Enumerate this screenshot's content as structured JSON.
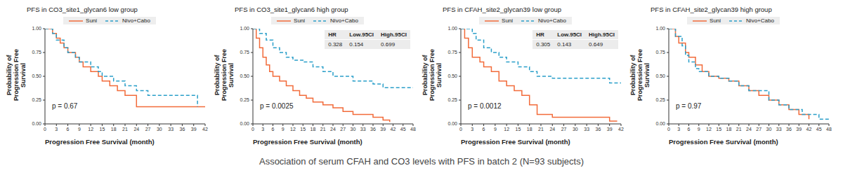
{
  "caption": "Association of serum CFAH and CO3 levels with PFS in batch 2 (N=93 subjects)",
  "chart_data": [
    {
      "type": "line",
      "title": "PFS in CO3_site1_glycan6 low group",
      "x_label": "Progression Free Survival (month)",
      "y_label": "Probability of Progression Free Survival",
      "legend": "top",
      "xlim": [
        0,
        42
      ],
      "xticks": [
        0,
        3,
        6,
        9,
        12,
        15,
        18,
        21,
        24,
        27,
        30,
        33,
        36,
        39,
        42
      ],
      "ylim": [
        0,
        1
      ],
      "yticks": [
        {
          "value": 0,
          "label": "0.00"
        },
        {
          "value": 0.25,
          "label": "0.25"
        },
        {
          "value": 0.5,
          "label": "0.50"
        },
        {
          "value": 0.75,
          "label": "0.75"
        },
        {
          "value": 1,
          "label": "1.00"
        }
      ],
      "series": [
        {
          "name": "Suni",
          "color": "#f26b3a",
          "line_style": "solid",
          "x": [
            0,
            2,
            3,
            4,
            5,
            6,
            8,
            9,
            10,
            12,
            14,
            15,
            17,
            19,
            21,
            24,
            40,
            42
          ],
          "values": [
            1,
            0.95,
            0.9,
            0.85,
            0.8,
            0.75,
            0.7,
            0.65,
            0.6,
            0.55,
            0.5,
            0.45,
            0.4,
            0.35,
            0.3,
            0.18,
            0.18,
            0.18
          ]
        },
        {
          "name": "Nivo+Cabo",
          "color": "#2a9fc9",
          "line_style": "dashed",
          "x": [
            0,
            2,
            3,
            5,
            6,
            8,
            9,
            12,
            14,
            15,
            18,
            21,
            24,
            27,
            38,
            40
          ],
          "values": [
            1,
            0.95,
            0.88,
            0.8,
            0.75,
            0.7,
            0.65,
            0.6,
            0.55,
            0.5,
            0.45,
            0.4,
            0.35,
            0.3,
            0.3,
            0.18
          ]
        }
      ],
      "annotations": [
        "p = 0.67"
      ]
    },
    {
      "type": "line",
      "title": "PFS in CO3_site1_glycan6 high group",
      "x_label": "Progression Free Survival (month)",
      "y_label": "Probability of Progression Free Survival",
      "legend": "top",
      "xlim": [
        0,
        48
      ],
      "xticks": [
        0,
        3,
        6,
        9,
        12,
        15,
        18,
        21,
        24,
        27,
        30,
        33,
        36,
        39,
        42,
        45,
        48
      ],
      "ylim": [
        0,
        1
      ],
      "yticks": [
        {
          "value": 0,
          "label": "0.00"
        },
        {
          "value": 0.25,
          "label": "0.25"
        },
        {
          "value": 0.5,
          "label": "0.50"
        },
        {
          "value": 0.75,
          "label": "0.75"
        },
        {
          "value": 1,
          "label": "1.00"
        }
      ],
      "series": [
        {
          "name": "Suni",
          "color": "#f26b3a",
          "line_style": "solid",
          "x": [
            0,
            1,
            2,
            3,
            4,
            5,
            6,
            8,
            10,
            12,
            14,
            16,
            18,
            21,
            24,
            27,
            30,
            36,
            39,
            41
          ],
          "values": [
            1,
            0.9,
            0.8,
            0.7,
            0.62,
            0.55,
            0.5,
            0.45,
            0.4,
            0.35,
            0.3,
            0.27,
            0.23,
            0.2,
            0.17,
            0.13,
            0.1,
            0.07,
            0.04,
            0.02
          ]
        },
        {
          "name": "Nivo+Cabo",
          "color": "#2a9fc9",
          "line_style": "dashed",
          "x": [
            0,
            2,
            4,
            6,
            8,
            10,
            12,
            15,
            18,
            21,
            24,
            30,
            36,
            39,
            42,
            48
          ],
          "values": [
            1,
            0.95,
            0.88,
            0.8,
            0.75,
            0.7,
            0.67,
            0.65,
            0.6,
            0.55,
            0.5,
            0.45,
            0.42,
            0.38,
            0.38,
            0.38
          ]
        }
      ],
      "annotations": [
        "p = 0.0025"
      ],
      "hr_table": {
        "columns": [
          "HR",
          "Low.95CI",
          "High.95CI"
        ],
        "values": [
          0.328,
          0.154,
          0.699
        ]
      }
    },
    {
      "type": "line",
      "title": "PFS in CFAH_site2_glycan39 low group",
      "x_label": "Progression Free Survival (month)",
      "y_label": "Probability of Progression Free Survival",
      "legend": "top",
      "xlim": [
        0,
        42
      ],
      "xticks": [
        0,
        3,
        6,
        9,
        12,
        15,
        18,
        21,
        24,
        27,
        30,
        33,
        36,
        39,
        42
      ],
      "ylim": [
        0,
        1
      ],
      "yticks": [
        {
          "value": 0,
          "label": "0.00"
        },
        {
          "value": 0.25,
          "label": "0.25"
        },
        {
          "value": 0.5,
          "label": "0.50"
        },
        {
          "value": 0.75,
          "label": "0.75"
        },
        {
          "value": 1,
          "label": "1.00"
        }
      ],
      "series": [
        {
          "name": "Suni",
          "color": "#f26b3a",
          "line_style": "solid",
          "x": [
            0,
            1,
            2,
            3,
            5,
            6,
            8,
            10,
            12,
            14,
            16,
            18,
            20,
            24,
            36,
            39,
            41
          ],
          "values": [
            1,
            0.9,
            0.8,
            0.7,
            0.65,
            0.6,
            0.55,
            0.45,
            0.4,
            0.35,
            0.3,
            0.2,
            0.1,
            0.07,
            0.07,
            0.03,
            0.03
          ]
        },
        {
          "name": "Nivo+Cabo",
          "color": "#2a9fc9",
          "line_style": "dashed",
          "x": [
            0,
            3,
            4,
            6,
            8,
            10,
            12,
            15,
            18,
            20,
            24,
            39,
            42
          ],
          "values": [
            1,
            0.95,
            0.88,
            0.8,
            0.75,
            0.7,
            0.65,
            0.6,
            0.55,
            0.5,
            0.48,
            0.43,
            0.43
          ]
        }
      ],
      "annotations": [
        "p = 0.0012"
      ],
      "hr_table": {
        "columns": [
          "HR",
          "Low.95CI",
          "High.95CI"
        ],
        "values": [
          0.305,
          0.143,
          0.649
        ]
      }
    },
    {
      "type": "line",
      "title": "PFS in CFAH_site2_glycan39 high group",
      "x_label": "Progression Free Survival (month)",
      "y_label": "Probability of Progression Free Survival",
      "legend": "top",
      "xlim": [
        0,
        48
      ],
      "xticks": [
        0,
        3,
        6,
        9,
        12,
        15,
        18,
        21,
        24,
        27,
        30,
        33,
        36,
        39,
        42,
        45,
        48
      ],
      "ylim": [
        0,
        1
      ],
      "yticks": [
        {
          "value": 0,
          "label": "0.00"
        },
        {
          "value": 0.25,
          "label": "0.25"
        },
        {
          "value": 0.5,
          "label": "0.50"
        },
        {
          "value": 0.75,
          "label": "0.75"
        },
        {
          "value": 1,
          "label": "1.00"
        }
      ],
      "series": [
        {
          "name": "Suni",
          "color": "#f26b3a",
          "line_style": "solid",
          "x": [
            0,
            2,
            3,
            5,
            6,
            8,
            10,
            12,
            15,
            18,
            21,
            24,
            27,
            30,
            33,
            36,
            39,
            42
          ],
          "values": [
            1,
            0.92,
            0.85,
            0.75,
            0.7,
            0.62,
            0.55,
            0.5,
            0.48,
            0.45,
            0.4,
            0.35,
            0.3,
            0.25,
            0.2,
            0.15,
            0.1,
            0.05
          ]
        },
        {
          "name": "Nivo+Cabo",
          "color": "#2a9fc9",
          "line_style": "dashed",
          "x": [
            0,
            2,
            4,
            5,
            6,
            8,
            9,
            12,
            15,
            18,
            21,
            24,
            30,
            33,
            36,
            40,
            45,
            48
          ],
          "values": [
            1,
            0.92,
            0.82,
            0.72,
            0.65,
            0.58,
            0.55,
            0.5,
            0.48,
            0.45,
            0.4,
            0.35,
            0.25,
            0.2,
            0.15,
            0.1,
            0.05,
            0.05
          ]
        }
      ],
      "annotations": [
        "p = 0.97"
      ]
    }
  ]
}
